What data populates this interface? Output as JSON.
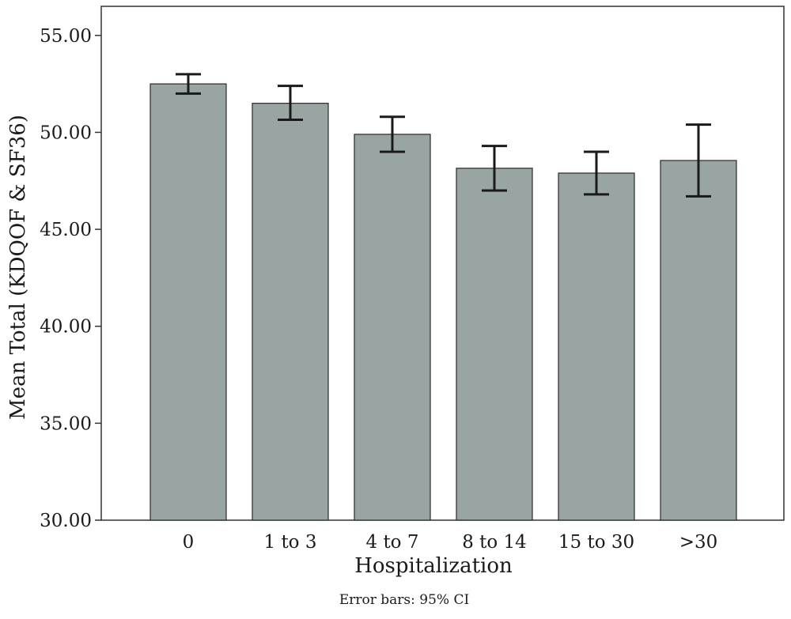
{
  "chart_data": {
    "type": "bar",
    "xlabel": "Hospitalization",
    "ylabel": "Mean  Total (KDQOF & SF36)",
    "footnote": "Error bars: 95% CI",
    "categories": [
      "0",
      "1 to 3",
      "4 to 7",
      "8 to 14",
      "15 to 30",
      ">30"
    ],
    "values": [
      52.5,
      51.5,
      49.9,
      48.15,
      47.9,
      48.55
    ],
    "error_low": [
      52.0,
      50.65,
      49.0,
      47.0,
      46.8,
      46.7
    ],
    "error_high": [
      53.0,
      52.4,
      50.8,
      49.3,
      49.0,
      50.4
    ],
    "ylim": [
      30,
      56.5
    ],
    "y_ticks": [
      "30.00",
      "35.00",
      "40.00",
      "45.00",
      "50.00",
      "55.00"
    ],
    "y_tick_values": [
      30,
      35,
      40,
      45,
      50,
      55
    ],
    "grid": false,
    "colors": {
      "bar_fill": "#98a5a3",
      "bar_stroke": "#2a2a2a",
      "error_bar": "#1a1a1a",
      "axis": "#333333"
    }
  }
}
